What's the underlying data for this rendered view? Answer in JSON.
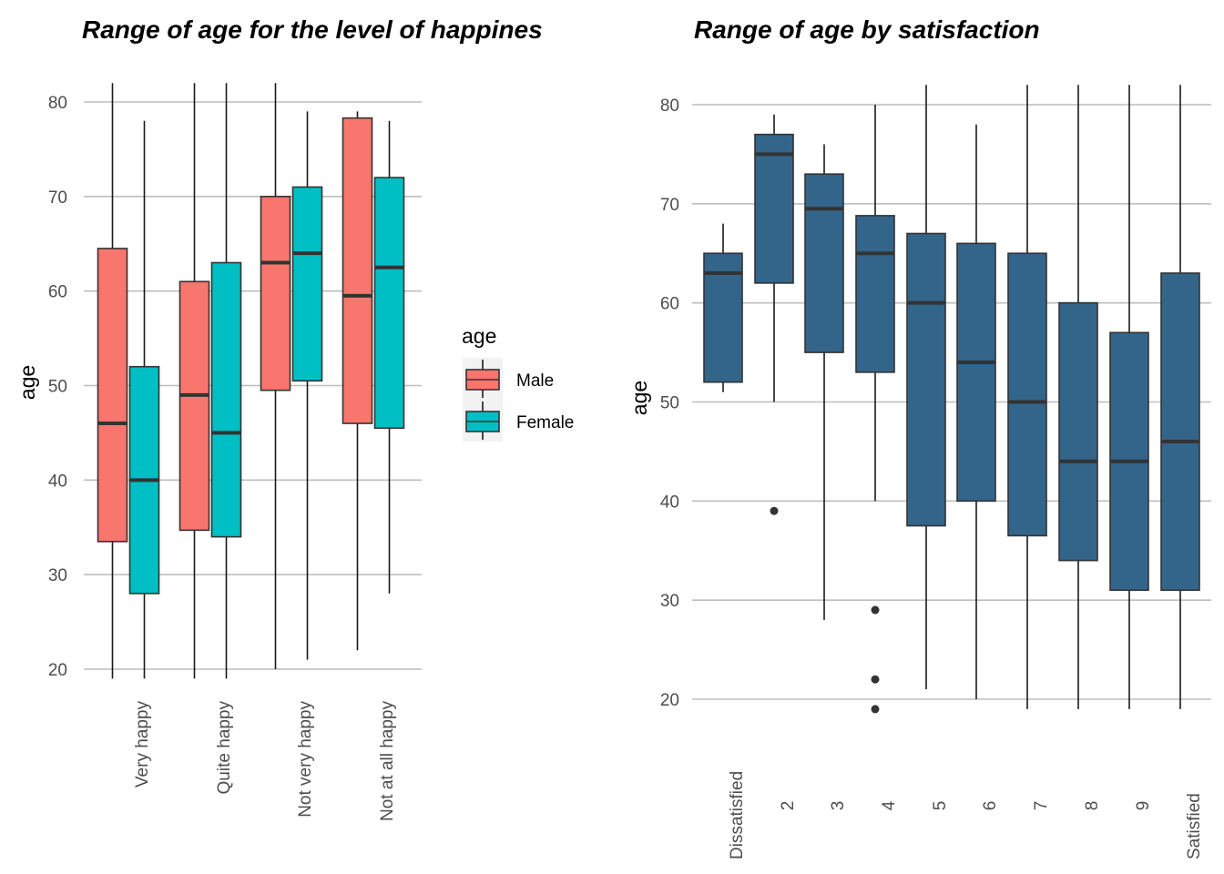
{
  "chart_data": [
    {
      "type": "boxplot",
      "title": "Range of age for the level of happines",
      "xlabel": "",
      "ylabel": "age",
      "ylim": [
        17,
        82
      ],
      "yticks": [
        20,
        30,
        40,
        50,
        60,
        70,
        80
      ],
      "categories": [
        "Very happy",
        "Quite happy",
        "Not very happy",
        "Not at all happy"
      ],
      "legend": {
        "title": "age",
        "placement": "right"
      },
      "series": [
        {
          "name": "Male",
          "color": "#F8766D",
          "boxes": [
            {
              "min": 19,
              "q1": 33.5,
              "median": 46,
              "q3": 64.5,
              "max": 82
            },
            {
              "min": 19,
              "q1": 34.7,
              "median": 49,
              "q3": 61,
              "max": 82
            },
            {
              "min": 20,
              "q1": 49.5,
              "median": 63,
              "q3": 70,
              "max": 82
            },
            {
              "min": 22,
              "q1": 46,
              "median": 59.5,
              "q3": 78.3,
              "max": 79
            }
          ]
        },
        {
          "name": "Female",
          "color": "#00BFC4",
          "boxes": [
            {
              "min": 19,
              "q1": 28,
              "median": 40,
              "q3": 52,
              "max": 78
            },
            {
              "min": 19,
              "q1": 34,
              "median": 45,
              "q3": 63,
              "max": 82
            },
            {
              "min": 21,
              "q1": 50.5,
              "median": 64,
              "q3": 71,
              "max": 79
            },
            {
              "min": 28,
              "q1": 45.5,
              "median": 62.5,
              "q3": 72,
              "max": 78
            }
          ]
        }
      ]
    },
    {
      "type": "boxplot",
      "title": "Range of age by satisfaction",
      "xlabel": "",
      "ylabel": "age",
      "ylim": [
        18,
        82
      ],
      "yticks": [
        20,
        30,
        40,
        50,
        60,
        70,
        80
      ],
      "categories": [
        "Dissatisfied",
        "2",
        "3",
        "4",
        "5",
        "6",
        "7",
        "8",
        "9",
        "Satisfied"
      ],
      "color": "#33658A",
      "boxes": [
        {
          "min": 51,
          "q1": 52,
          "median": 63,
          "q3": 65,
          "max": 68,
          "outliers": []
        },
        {
          "min": 50,
          "q1": 62,
          "median": 75,
          "q3": 77,
          "max": 79,
          "outliers": [
            39
          ]
        },
        {
          "min": 28,
          "q1": 55,
          "median": 69.5,
          "q3": 73,
          "max": 76,
          "outliers": []
        },
        {
          "min": 40,
          "q1": 53,
          "median": 65,
          "q3": 68.8,
          "max": 80,
          "outliers": [
            29,
            22,
            19
          ]
        },
        {
          "min": 21,
          "q1": 37.5,
          "median": 60,
          "q3": 67,
          "max": 82,
          "outliers": []
        },
        {
          "min": 20,
          "q1": 40,
          "median": 54,
          "q3": 66,
          "max": 78,
          "outliers": []
        },
        {
          "min": 19,
          "q1": 36.5,
          "median": 50,
          "q3": 65,
          "max": 82,
          "outliers": []
        },
        {
          "min": 19,
          "q1": 34,
          "median": 44,
          "q3": 60,
          "max": 82,
          "outliers": []
        },
        {
          "min": 19,
          "q1": 31,
          "median": 44,
          "q3": 57,
          "max": 82,
          "outliers": []
        },
        {
          "min": 19,
          "q1": 31,
          "median": 46,
          "q3": 63,
          "max": 82,
          "outliers": []
        }
      ]
    }
  ]
}
